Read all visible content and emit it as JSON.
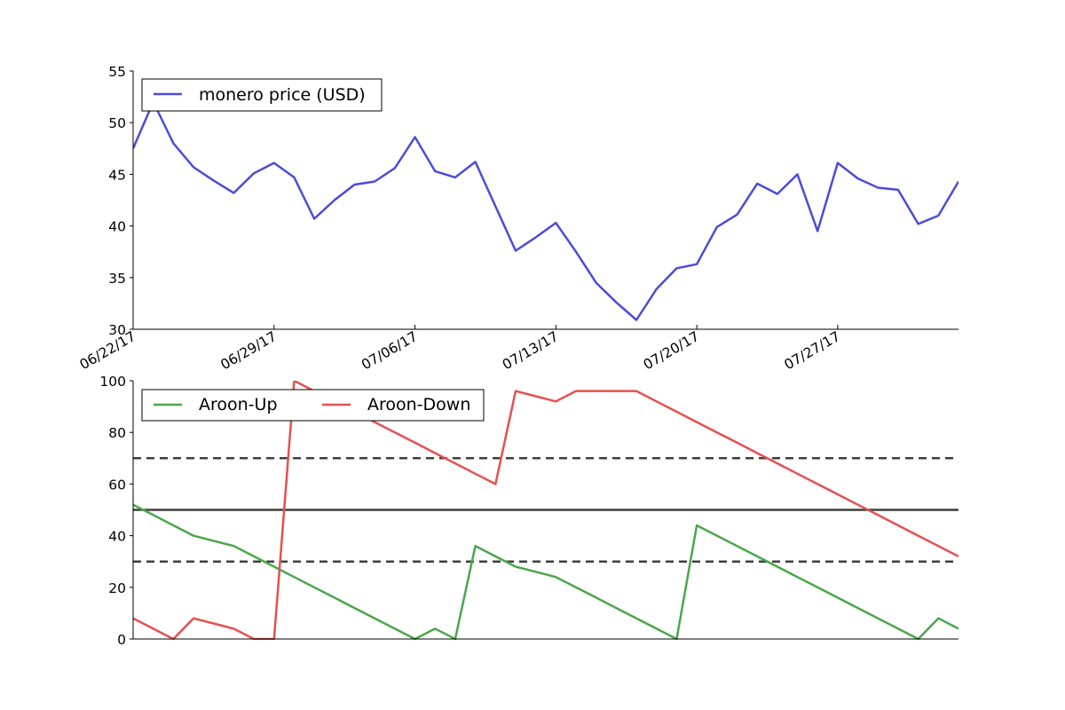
{
  "chart_data": [
    {
      "type": "line",
      "title": "",
      "xlabel": "",
      "ylabel": "",
      "ylim": [
        30,
        55
      ],
      "yticks": [
        "30",
        "35",
        "40",
        "45",
        "50",
        "55"
      ],
      "xticks": [
        "06/22/17",
        "06/29/17",
        "07/06/17",
        "07/13/17",
        "07/20/17",
        "07/27/17"
      ],
      "x_start_date": "2017-06-22",
      "x_end_date": "2017-08-02",
      "legend_position": "upper-left",
      "series": [
        {
          "name": "monero price (USD)",
          "color": "#4c4cd8",
          "x": [
            "2017-06-22",
            "2017-06-23",
            "2017-06-24",
            "2017-06-25",
            "2017-06-26",
            "2017-06-27",
            "2017-06-28",
            "2017-06-29",
            "2017-06-30",
            "2017-07-01",
            "2017-07-02",
            "2017-07-03",
            "2017-07-04",
            "2017-07-05",
            "2017-07-06",
            "2017-07-07",
            "2017-07-08",
            "2017-07-09",
            "2017-07-10",
            "2017-07-11",
            "2017-07-12",
            "2017-07-13",
            "2017-07-14",
            "2017-07-15",
            "2017-07-16",
            "2017-07-17",
            "2017-07-18",
            "2017-07-19",
            "2017-07-20",
            "2017-07-21",
            "2017-07-22",
            "2017-07-23",
            "2017-07-24",
            "2017-07-25",
            "2017-07-26",
            "2017-07-27",
            "2017-07-28",
            "2017-07-29",
            "2017-07-30",
            "2017-07-31",
            "2017-08-01",
            "2017-08-02"
          ],
          "values": [
            47.5,
            52.0,
            48.0,
            45.7,
            44.4,
            43.2,
            45.1,
            46.1,
            44.7,
            40.7,
            42.5,
            44.0,
            44.3,
            45.6,
            48.6,
            45.3,
            44.7,
            46.2,
            41.9,
            37.6,
            38.9,
            40.3,
            37.5,
            34.5,
            32.6,
            30.9,
            33.9,
            35.9,
            36.3,
            39.9,
            41.1,
            44.1,
            43.1,
            45.0,
            39.5,
            46.1,
            44.6,
            43.7,
            43.5,
            40.2,
            41.0,
            44.3
          ]
        }
      ]
    },
    {
      "type": "line",
      "title": "",
      "xlabel": "",
      "ylabel": "",
      "ylim": [
        0,
        100
      ],
      "yticks": [
        "0",
        "20",
        "40",
        "60",
        "80",
        "100"
      ],
      "legend_position": "upper-left",
      "reference_lines": [
        {
          "y": 70,
          "style": "dashed",
          "color": "#3f3f3f"
        },
        {
          "y": 50,
          "style": "solid",
          "color": "#3f3f3f"
        },
        {
          "y": 30,
          "style": "dashed",
          "color": "#3f3f3f"
        }
      ],
      "series": [
        {
          "name": "Aroon-Up",
          "color": "#4ca64c",
          "x": [
            "2017-06-22",
            "2017-06-23",
            "2017-06-24",
            "2017-06-25",
            "2017-06-26",
            "2017-06-27",
            "2017-06-28",
            "2017-06-29",
            "2017-06-30",
            "2017-07-01",
            "2017-07-02",
            "2017-07-03",
            "2017-07-04",
            "2017-07-05",
            "2017-07-06",
            "2017-07-07",
            "2017-07-08",
            "2017-07-09",
            "2017-07-10",
            "2017-07-11",
            "2017-07-12",
            "2017-07-13",
            "2017-07-14",
            "2017-07-15",
            "2017-07-16",
            "2017-07-17",
            "2017-07-18",
            "2017-07-19",
            "2017-07-20",
            "2017-07-21",
            "2017-07-22",
            "2017-07-23",
            "2017-07-24",
            "2017-07-25",
            "2017-07-26",
            "2017-07-27",
            "2017-07-28",
            "2017-07-29",
            "2017-07-30",
            "2017-07-31",
            "2017-08-01",
            "2017-08-02"
          ],
          "values": [
            52,
            48,
            44,
            40,
            38,
            36,
            32,
            28,
            24,
            20,
            16,
            12,
            8,
            4,
            0,
            4,
            0,
            36,
            32,
            28,
            26,
            24,
            20,
            16,
            12,
            8,
            4,
            0,
            44,
            40,
            36,
            32,
            28,
            24,
            20,
            16,
            12,
            8,
            4,
            0,
            8,
            4
          ]
        },
        {
          "name": "Aroon-Down",
          "color": "#e65050",
          "x": [
            "2017-06-22",
            "2017-06-23",
            "2017-06-24",
            "2017-06-25",
            "2017-06-26",
            "2017-06-27",
            "2017-06-28",
            "2017-06-29",
            "2017-06-30",
            "2017-07-01",
            "2017-07-02",
            "2017-07-03",
            "2017-07-04",
            "2017-07-05",
            "2017-07-06",
            "2017-07-07",
            "2017-07-08",
            "2017-07-09",
            "2017-07-10",
            "2017-07-11",
            "2017-07-12",
            "2017-07-13",
            "2017-07-14",
            "2017-07-15",
            "2017-07-16",
            "2017-07-17",
            "2017-07-18",
            "2017-07-19",
            "2017-07-20",
            "2017-07-21",
            "2017-07-22",
            "2017-07-23",
            "2017-07-24",
            "2017-07-25",
            "2017-07-26",
            "2017-07-27",
            "2017-07-28",
            "2017-07-29",
            "2017-07-30",
            "2017-07-31",
            "2017-08-01",
            "2017-08-02"
          ],
          "values": [
            8,
            4,
            0,
            8,
            6,
            4,
            0,
            0,
            100,
            96,
            92,
            88,
            84,
            80,
            76,
            72,
            68,
            64,
            60,
            96,
            94,
            92,
            96,
            96,
            96,
            96,
            92,
            88,
            84,
            80,
            76,
            72,
            68,
            64,
            60,
            56,
            52,
            48,
            44,
            40,
            36,
            32
          ]
        }
      ]
    }
  ]
}
